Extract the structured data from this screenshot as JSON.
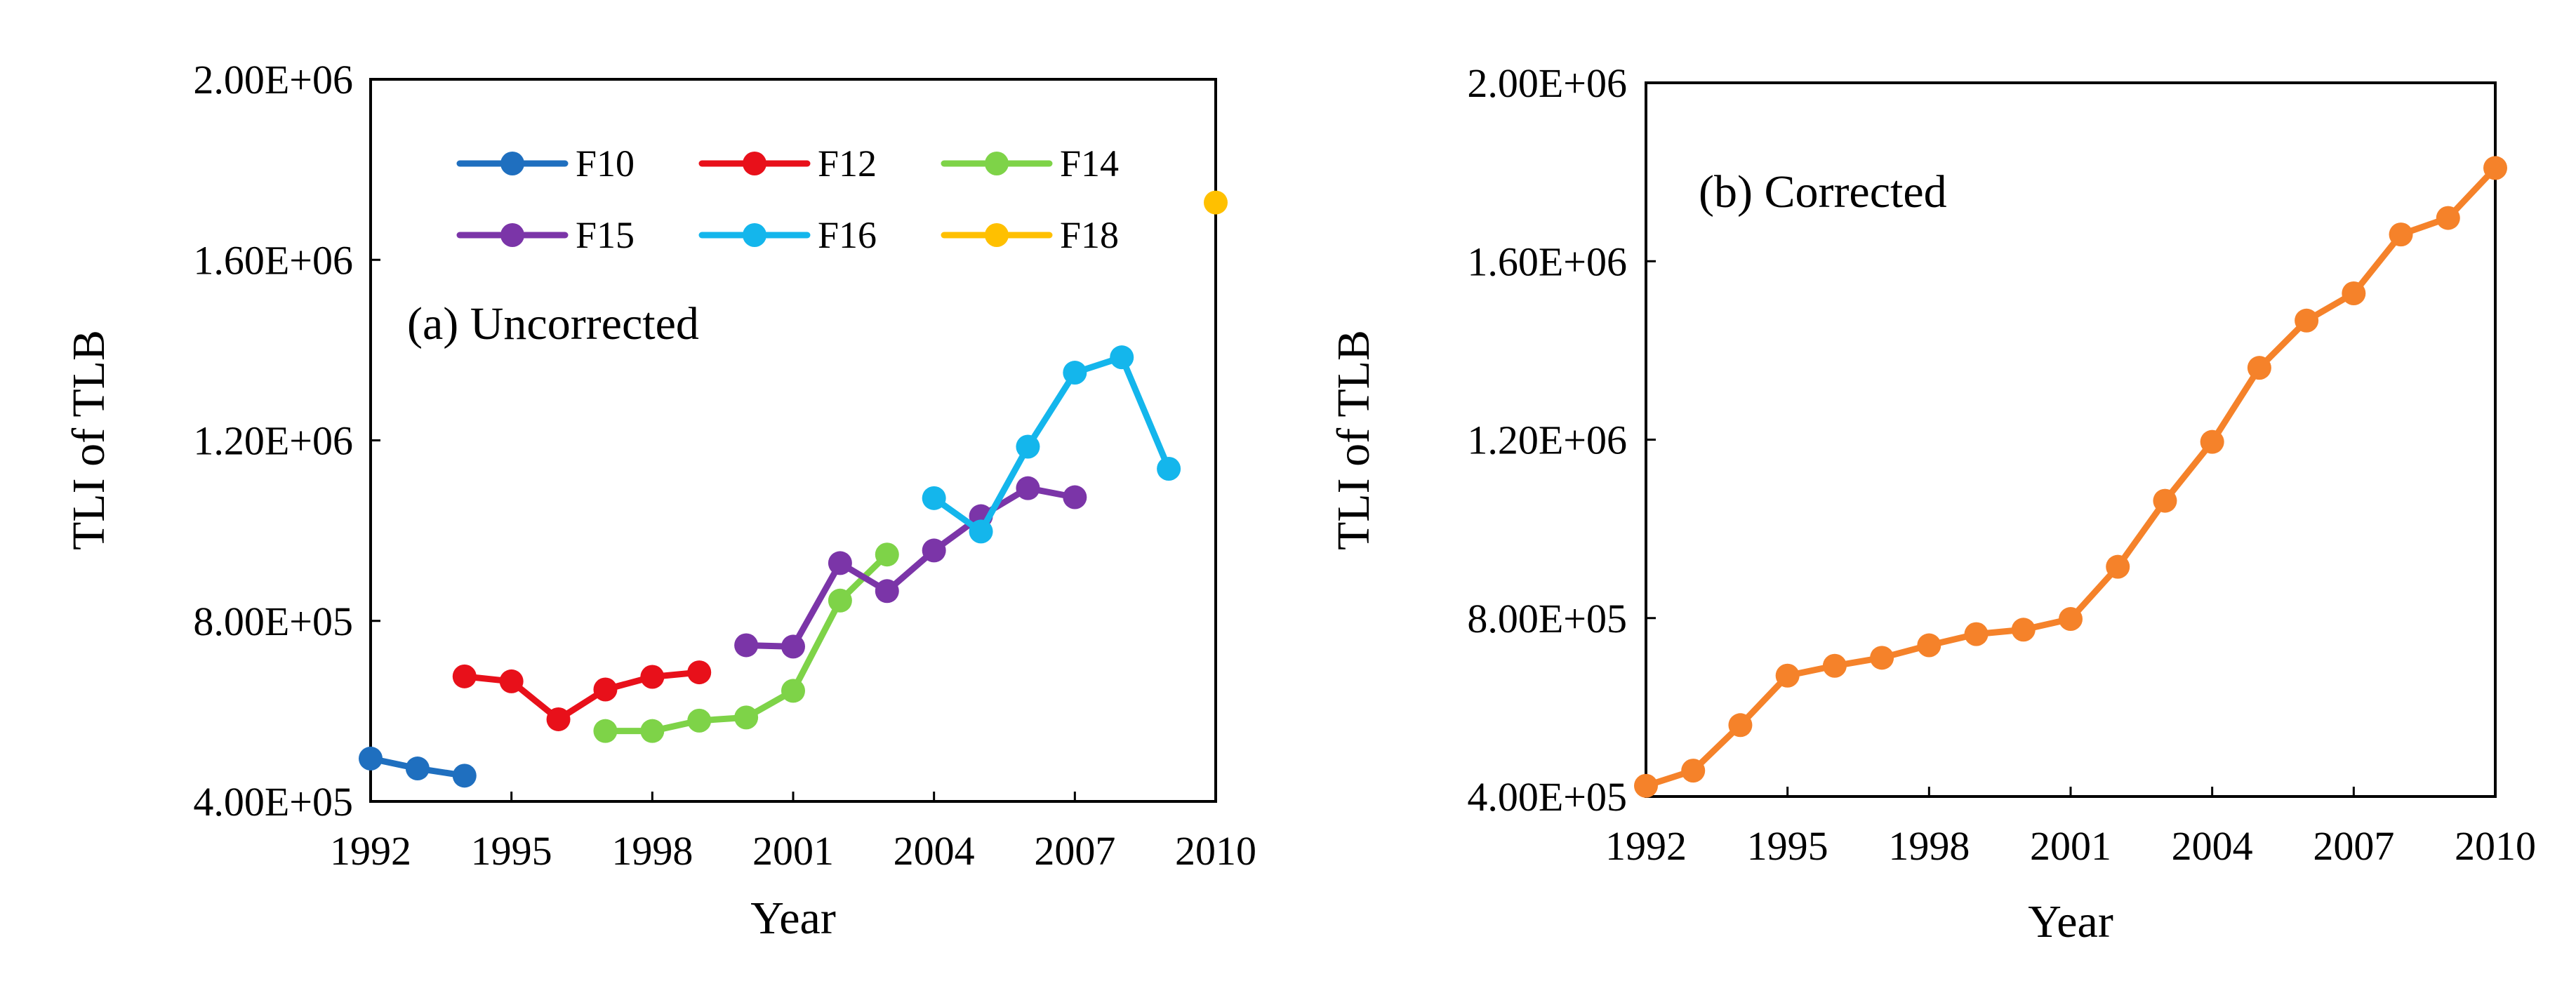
{
  "chart_data": [
    {
      "type": "line",
      "title": "(a) Uncorrected",
      "xlabel": "Year",
      "ylabel": "TLI of  TLB",
      "xlim": [
        1992,
        2010
      ],
      "ylim": [
        400000,
        2000000
      ],
      "xticks": [
        "1992",
        "1995",
        "1998",
        "2001",
        "2004",
        "2007",
        "2010"
      ],
      "yticks": [
        "4.00E+05",
        "8.00E+05",
        "1.20E+06",
        "1.60E+06",
        "2.00E+06"
      ],
      "legend_position": "top",
      "series": [
        {
          "name": "F10",
          "color": "#1f6fbf",
          "x": [
            1992,
            1993,
            1994
          ],
          "values": [
            495000,
            473000,
            457000
          ]
        },
        {
          "name": "F12",
          "color": "#e8101a",
          "x": [
            1994,
            1995,
            1996,
            1997,
            1998,
            1999
          ],
          "values": [
            677000,
            666000,
            582000,
            648000,
            676000,
            686000
          ]
        },
        {
          "name": "F14",
          "color": "#7ed348",
          "x": [
            1997,
            1998,
            1999,
            2000,
            2001,
            2002,
            2003
          ],
          "values": [
            556000,
            556000,
            579000,
            586000,
            645000,
            845000,
            947000
          ]
        },
        {
          "name": "F15",
          "color": "#7b35a8",
          "x": [
            2000,
            2001,
            2002,
            2003,
            2004,
            2005,
            2006,
            2007
          ],
          "values": [
            746000,
            743000,
            928000,
            866000,
            956000,
            1032000,
            1094000,
            1074000
          ]
        },
        {
          "name": "F16",
          "color": "#14b6ec",
          "x": [
            2004,
            2005,
            2006,
            2007,
            2008,
            2009
          ],
          "values": [
            1072000,
            998000,
            1186000,
            1350000,
            1384000,
            1137000
          ]
        },
        {
          "name": "F18",
          "color": "#ffc000",
          "x": [
            2010
          ],
          "values": [
            1727000
          ]
        }
      ]
    },
    {
      "type": "line",
      "title": "(b) Corrected",
      "xlabel": "Year",
      "ylabel": "TLI of TLB",
      "xlim": [
        1992,
        2010
      ],
      "ylim": [
        400000,
        2000000
      ],
      "xticks": [
        "1992",
        "1995",
        "1998",
        "2001",
        "2004",
        "2007",
        "2010"
      ],
      "yticks": [
        "4.00E+05",
        "8.00E+05",
        "1.20E+06",
        "1.60E+06",
        "2.00E+06"
      ],
      "series": [
        {
          "name": "Corrected",
          "color": "#f5822a",
          "x": [
            1992,
            1993,
            1994,
            1995,
            1996,
            1997,
            1998,
            1999,
            2000,
            2001,
            2002,
            2003,
            2004,
            2005,
            2006,
            2007,
            2008,
            2009,
            2010
          ],
          "values": [
            424000,
            458000,
            560000,
            671000,
            693000,
            711000,
            739000,
            764000,
            774000,
            798000,
            915000,
            1063000,
            1195000,
            1361000,
            1467000,
            1528000,
            1660000,
            1697000,
            1809000
          ]
        }
      ]
    }
  ]
}
